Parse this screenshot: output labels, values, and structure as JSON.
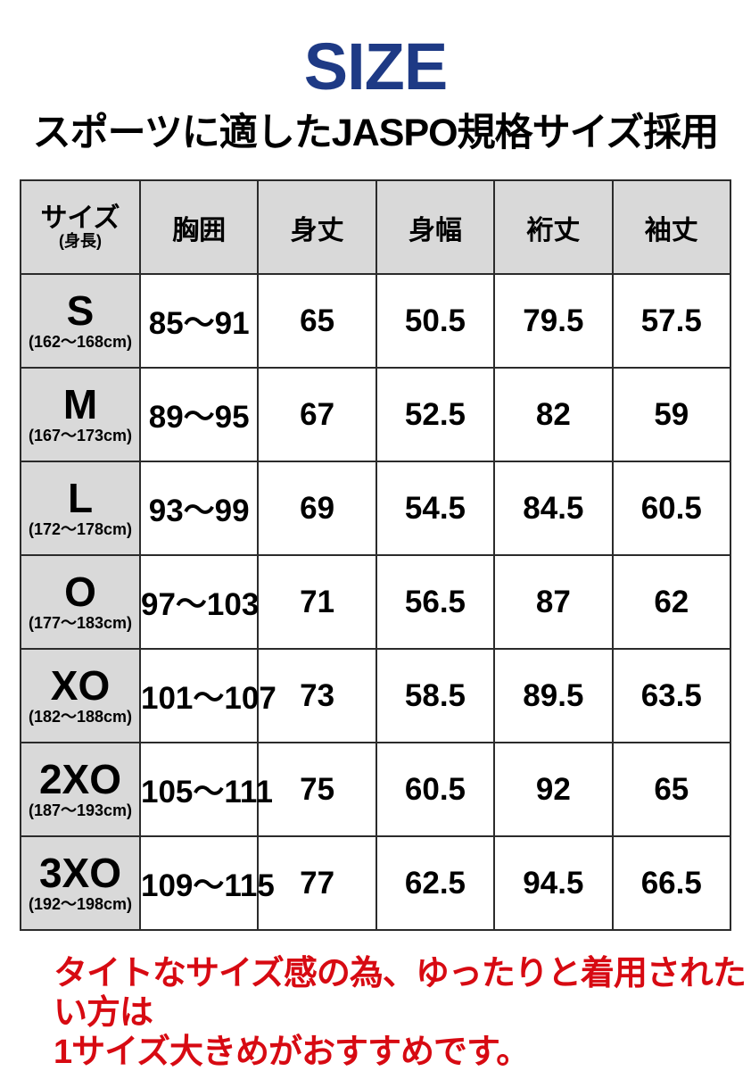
{
  "page": {
    "title": "SIZE",
    "subtitle": "スポーツに適したJASPO規格サイズ採用",
    "note_line1": "タイトなサイズ感の為、ゆったりと着用されたい方は",
    "note_line2": "1サイズ大きめがおすすめです。"
  },
  "colors": {
    "title_navy": "#1e3a85",
    "note_red": "#d70a12",
    "header_gray": "#d9d9d9",
    "border_dark": "#2b2b2b",
    "cell_white": "#ffffff"
  },
  "size_table": {
    "header": {
      "size_label": "サイズ",
      "size_sublabel": "(身長)",
      "columns": [
        "胸囲",
        "身丈",
        "身幅",
        "裄丈",
        "袖丈"
      ]
    },
    "rows": [
      {
        "size": "S",
        "height_range": "(162〜168cm)",
        "values": [
          "85〜91",
          "65",
          "50.5",
          "79.5",
          "57.5"
        ]
      },
      {
        "size": "M",
        "height_range": "(167〜173cm)",
        "values": [
          "89〜95",
          "67",
          "52.5",
          "82",
          "59"
        ]
      },
      {
        "size": "L",
        "height_range": "(172〜178cm)",
        "values": [
          "93〜99",
          "69",
          "54.5",
          "84.5",
          "60.5"
        ]
      },
      {
        "size": "O",
        "height_range": "(177〜183cm)",
        "values": [
          "97〜103",
          "71",
          "56.5",
          "87",
          "62"
        ]
      },
      {
        "size": "XO",
        "height_range": "(182〜188cm)",
        "values": [
          "101〜107",
          "73",
          "58.5",
          "89.5",
          "63.5"
        ]
      },
      {
        "size": "2XO",
        "height_range": "(187〜193cm)",
        "values": [
          "105〜111",
          "75",
          "60.5",
          "92",
          "65"
        ]
      },
      {
        "size": "3XO",
        "height_range": "(192〜198cm)",
        "values": [
          "109〜115",
          "77",
          "62.5",
          "94.5",
          "66.5"
        ]
      }
    ]
  }
}
